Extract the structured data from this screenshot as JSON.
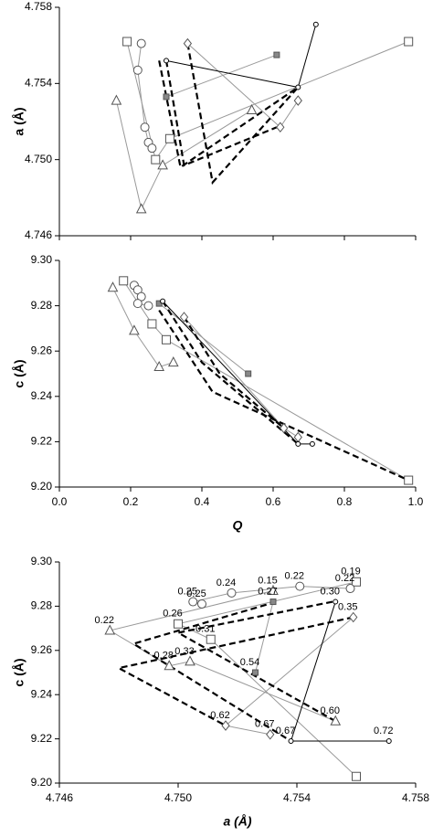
{
  "chart_data": [
    {
      "type": "scatter",
      "ylabel": "a (Å)",
      "xlim": [
        0,
        1
      ],
      "xticks": [
        0,
        0.2,
        0.4,
        0.6,
        0.8,
        1
      ],
      "xtick_labels": false,
      "ylim": [
        4.746,
        4.758
      ],
      "yticks": [
        4.746,
        {
          "value": 4.75,
          "label": "4.750"
        },
        4.754,
        4.758
      ],
      "series": [
        {
          "marker": "square",
          "color": "#999999",
          "x": [
            0.19,
            0.27,
            0.31,
            0.98
          ],
          "values": [
            4.7562,
            4.75,
            4.7511,
            4.7562
          ]
        },
        {
          "marker": "circle",
          "color": "#999999",
          "x": [
            0.23,
            0.22,
            0.24,
            0.25,
            0.26
          ],
          "values": [
            4.7561,
            4.7547,
            4.7517,
            4.7509,
            4.7506
          ]
        },
        {
          "marker": "triangle",
          "color": "#999999",
          "x": [
            0.16,
            0.23,
            0.29,
            0.54
          ],
          "values": [
            4.7531,
            4.7474,
            4.7497,
            4.7526
          ]
        },
        {
          "marker": "diamond",
          "color": "#999999",
          "x": [
            0.36,
            0.62,
            0.67
          ],
          "values": [
            4.7561,
            4.7517,
            4.7531
          ]
        },
        {
          "marker": "small-square",
          "color": "#999999",
          "x": [
            0.3,
            0.61
          ],
          "values": [
            4.7533,
            4.7555
          ]
        },
        {
          "marker": "small-circle",
          "color": "#000000",
          "x": [
            0.3,
            0.67,
            0.72
          ],
          "values": [
            4.7552,
            4.7538,
            4.7571
          ]
        },
        {
          "dash": true,
          "color": "#000000",
          "x": [
            0.28,
            0.34,
            0.67
          ],
          "values": [
            4.7552,
            4.7496,
            4.7538
          ]
        },
        {
          "dash": true,
          "color": "#000000",
          "x": [
            0.3,
            0.35,
            0.61
          ],
          "values": [
            4.7552,
            4.7497,
            4.7517
          ]
        },
        {
          "dash": true,
          "color": "#000000",
          "x": [
            0.36,
            0.43,
            0.67
          ],
          "values": [
            4.7561,
            4.7488,
            4.7538
          ]
        }
      ]
    },
    {
      "type": "scatter",
      "ylabel": "c (Å)",
      "xlabel": "Q",
      "xlim": [
        0,
        1
      ],
      "xticks": [
        {
          "value": 0,
          "label": "0.0"
        },
        0.2,
        0.4,
        0.6,
        0.8,
        {
          "value": 1,
          "label": "1.0"
        }
      ],
      "ylim": [
        9.2,
        9.3
      ],
      "yticks": [
        {
          "value": 9.2,
          "label": "9.20"
        },
        9.22,
        9.24,
        9.26,
        9.28,
        {
          "value": 9.3,
          "label": "9.30"
        }
      ],
      "series": [
        {
          "marker": "square",
          "color": "#999999",
          "x": [
            0.18,
            0.26,
            0.3,
            0.98
          ],
          "values": [
            9.291,
            9.272,
            9.265,
            9.203
          ]
        },
        {
          "marker": "circle",
          "color": "#999999",
          "x": [
            0.21,
            0.22,
            0.23,
            0.22,
            0.25
          ],
          "values": [
            9.289,
            9.287,
            9.284,
            9.281,
            9.28
          ]
        },
        {
          "marker": "triangle",
          "color": "#999999",
          "x": [
            0.15,
            0.21,
            0.28,
            0.32
          ],
          "values": [
            9.288,
            9.269,
            9.253,
            9.255
          ]
        },
        {
          "marker": "diamond",
          "color": "#999999",
          "x": [
            0.35,
            0.63,
            0.67
          ],
          "values": [
            9.275,
            9.226,
            9.222
          ]
        },
        {
          "marker": "small-square",
          "color": "#999999",
          "x": [
            0.28,
            0.53
          ],
          "values": [
            9.281,
            9.25
          ]
        },
        {
          "marker": "small-circle",
          "color": "#000000",
          "x": [
            0.29,
            0.67,
            0.71
          ],
          "values": [
            9.282,
            9.219,
            9.219
          ]
        },
        {
          "dash": true,
          "color": "#000000",
          "x": [
            0.28,
            0.43,
            0.98
          ],
          "values": [
            9.278,
            9.242,
            9.203
          ]
        },
        {
          "dash": true,
          "color": "#000000",
          "x": [
            0.29,
            0.4,
            0.67
          ],
          "values": [
            9.282,
            9.255,
            9.219
          ]
        },
        {
          "dash": true,
          "color": "#000000",
          "x": [
            0.35,
            0.45,
            0.63
          ],
          "values": [
            9.275,
            9.25,
            9.226
          ]
        }
      ]
    },
    {
      "type": "scatter",
      "ylabel": "c (Å)",
      "xlabel": "a (Å)",
      "xlim": [
        4.746,
        4.758
      ],
      "xticks": [
        4.746,
        {
          "value": 4.75,
          "label": "4.750"
        },
        4.754,
        4.758
      ],
      "ylim": [
        9.2,
        9.3
      ],
      "yticks": [
        {
          "value": 9.2,
          "label": "9.20"
        },
        9.22,
        9.24,
        9.26,
        9.28,
        {
          "value": 9.3,
          "label": "9.30"
        }
      ],
      "series": [
        {
          "marker": "square",
          "color": "#999999",
          "x": [
            4.756,
            4.75,
            4.7511,
            4.756
          ],
          "values": [
            9.291,
            9.272,
            9.265,
            9.203
          ],
          "value_labels": [
            "0.19",
            "0.26",
            "0.31",
            null
          ]
        },
        {
          "marker": "circle",
          "color": "#999999",
          "x": [
            4.7558,
            4.7541,
            4.7518,
            4.7505,
            4.7508
          ],
          "values": [
            9.288,
            9.289,
            9.286,
            9.282,
            9.281
          ],
          "value_labels": [
            "0.22",
            "0.22",
            "0.24",
            "0.25",
            "0.25"
          ]
        },
        {
          "marker": "triangle",
          "color": "#999999",
          "x": [
            4.7532,
            4.7477,
            4.7497,
            4.7504,
            4.7553
          ],
          "values": [
            9.287,
            9.269,
            9.253,
            9.255,
            9.228
          ],
          "value_labels": [
            "0.15",
            "0.22",
            "0.28",
            "0.33",
            "0.60"
          ]
        },
        {
          "marker": "diamond",
          "color": "#999999",
          "x": [
            4.7559,
            4.7516,
            4.7531
          ],
          "values": [
            9.275,
            9.226,
            9.222
          ],
          "value_labels": [
            "0.35",
            "0.62",
            "0.67"
          ]
        },
        {
          "marker": "small-square",
          "color": "#999999",
          "x": [
            4.7532,
            4.7526
          ],
          "values": [
            9.282,
            9.25
          ],
          "value_labels": [
            "0.27",
            "0.54"
          ]
        },
        {
          "marker": "small-circle",
          "color": "#000000",
          "x": [
            4.7553,
            4.7538,
            4.7571
          ],
          "values": [
            9.282,
            9.219,
            9.219
          ],
          "value_labels": [
            "0.30",
            "0.67",
            "0.72"
          ]
        },
        {
          "dash": true,
          "color": "#000000",
          "x": [
            4.7552,
            4.75,
            4.7553
          ],
          "values": [
            9.282,
            9.268,
            9.228
          ]
        },
        {
          "dash": true,
          "color": "#000000",
          "x": [
            4.7533,
            4.7485,
            4.7538
          ],
          "values": [
            9.282,
            9.263,
            9.219
          ]
        },
        {
          "dash": true,
          "color": "#000000",
          "x": [
            4.7559,
            4.748,
            4.7516
          ],
          "values": [
            9.275,
            9.252,
            9.226
          ]
        }
      ]
    }
  ]
}
